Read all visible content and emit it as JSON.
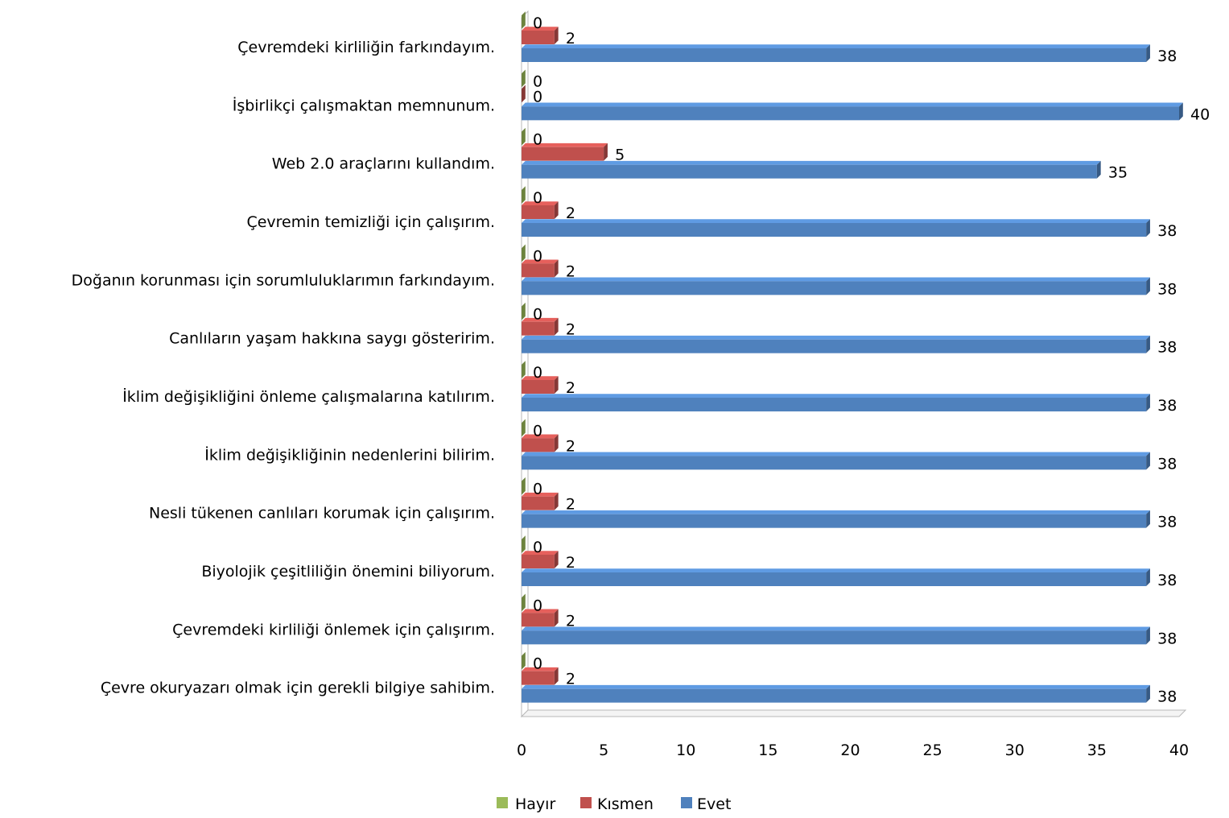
{
  "chart_data": {
    "type": "bar",
    "orientation": "horizontal",
    "categories": [
      "Çevremdeki kirliliğin farkındayım.",
      "İşbirlikçi çalışmaktan memnunum.",
      "Web 2.0 araçlarını kullandım.",
      "Çevremin temizliği için çalışırım.",
      "Doğanın korunması için sorumluluklarımın farkındayım.",
      "Canlıların yaşam hakkına saygı gösteririm.",
      "İklim değişikliğini önleme çalışmalarına katılırım.",
      "İklim değişikliğinin nedenlerini bilirim.",
      "Nesli tükenen canlıları korumak için çalışırım.",
      "Biyolojik çeşitliliğin önemini biliyorum.",
      "Çevremdeki kirliliği önlemek için çalışırım.",
      "Çevre okuryazarı olmak için gerekli bilgiye sahibim."
    ],
    "series": [
      {
        "name": "Hayır",
        "color": "#9BBB59",
        "values": [
          0,
          0,
          0,
          0,
          0,
          0,
          0,
          0,
          0,
          0,
          0,
          0
        ]
      },
      {
        "name": "Kısmen",
        "color": "#C0504D",
        "values": [
          2,
          0,
          5,
          2,
          2,
          2,
          2,
          2,
          2,
          2,
          2,
          2
        ]
      },
      {
        "name": "Evet",
        "color": "#4F81BD",
        "values": [
          38,
          40,
          35,
          38,
          38,
          38,
          38,
          38,
          38,
          38,
          38,
          38
        ]
      }
    ],
    "xticks": [
      "0",
      "5",
      "10",
      "15",
      "20",
      "25",
      "30",
      "35",
      "40"
    ],
    "xlim": [
      0,
      40
    ],
    "title": "",
    "xlabel": "",
    "ylabel": "",
    "legend_position": "bottom",
    "style": "3d"
  }
}
